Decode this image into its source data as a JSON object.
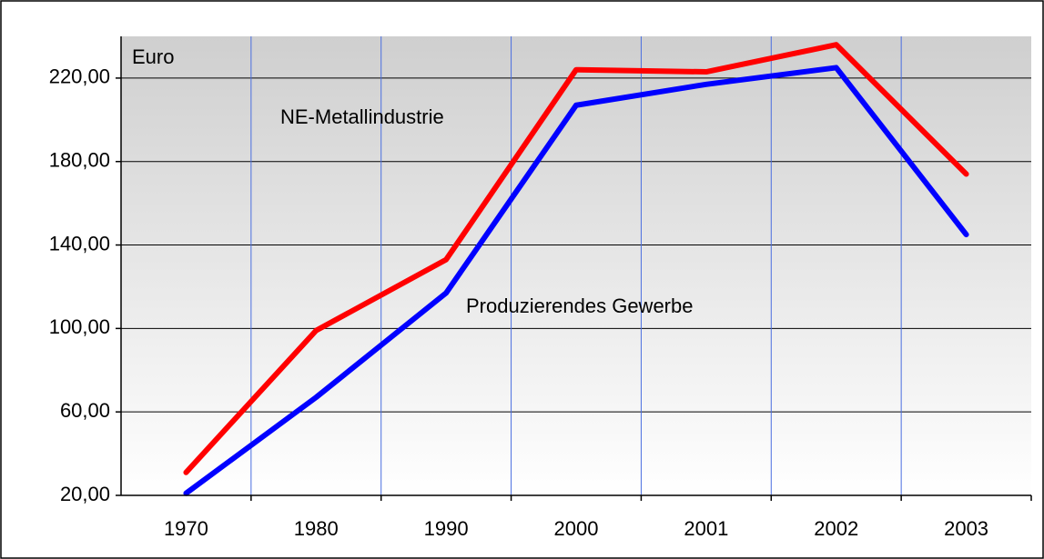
{
  "chart_data": {
    "type": "line",
    "y_label": "Euro",
    "categories": [
      "1970",
      "1980",
      "1990",
      "2000",
      "2001",
      "2002",
      "2003"
    ],
    "series": [
      {
        "name": "NE-Metallindustrie",
        "color": "#ff0000",
        "values": [
          31,
          99,
          133,
          224,
          223,
          236,
          174
        ]
      },
      {
        "name": "Produzierendes Gewerbe",
        "color": "#0000ff",
        "values": [
          21,
          67,
          117,
          207,
          217,
          225,
          145
        ]
      }
    ],
    "ylim": [
      20,
      240
    ],
    "yticks": [
      {
        "value": 20,
        "label": "20,00"
      },
      {
        "value": 60,
        "label": "60,00"
      },
      {
        "value": 100,
        "label": "100,00"
      },
      {
        "value": 140,
        "label": "140,00"
      },
      {
        "value": 180,
        "label": "180,00"
      },
      {
        "value": 220,
        "label": "220,00"
      }
    ],
    "grid": true
  }
}
